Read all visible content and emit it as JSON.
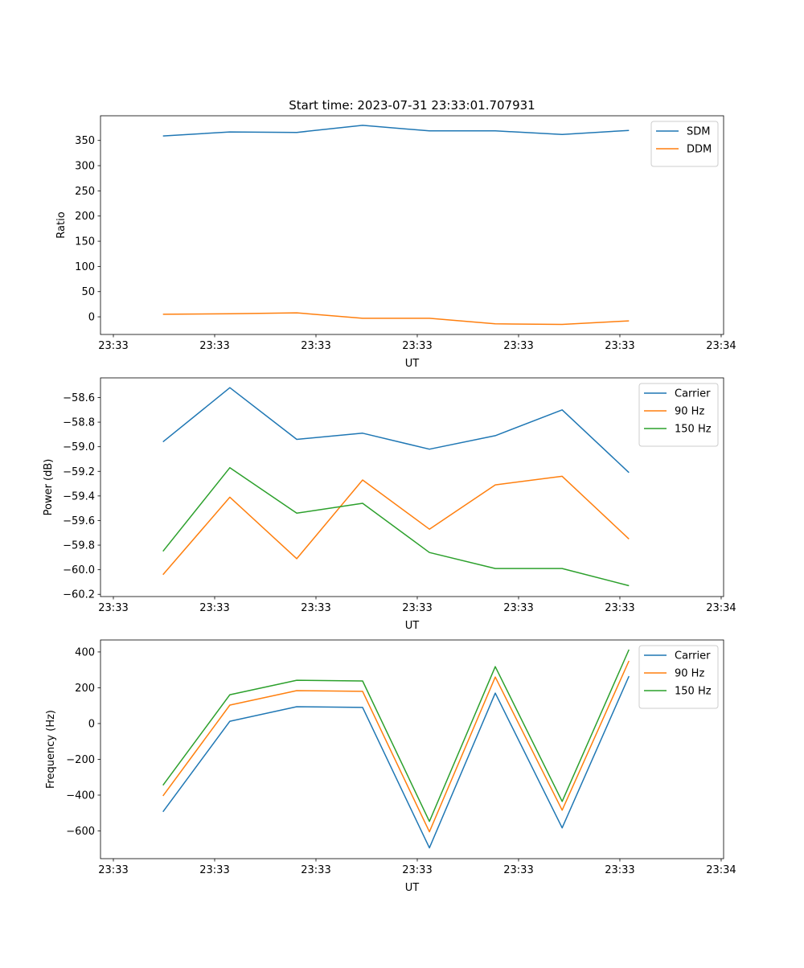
{
  "chart_data": [
    {
      "type": "line",
      "title": "Start time: 2023-07-31 23:33:01.707931",
      "xlabel": "UT",
      "ylabel": "Ratio",
      "x_unit": "seconds after 23:33:00",
      "x": [
        4.9,
        11.5,
        18.1,
        24.6,
        31.2,
        37.7,
        44.3,
        50.9
      ],
      "xlim": [
        -1.27,
        60.24
      ],
      "xticks": [
        0,
        10,
        20,
        30,
        40,
        50,
        60
      ],
      "xtick_labels": [
        "23:33",
        "23:33",
        "23:33",
        "23:33",
        "23:33",
        "23:33",
        "23:34"
      ],
      "ylim": [
        -35,
        399
      ],
      "yticks": [
        0,
        50,
        100,
        150,
        200,
        250,
        300,
        350
      ],
      "ytick_labels": [
        "0",
        "50",
        "100",
        "150",
        "200",
        "250",
        "300",
        "350"
      ],
      "legend": "upper-right",
      "series": [
        {
          "name": "SDM",
          "color": "#1f77b4",
          "values": [
            359,
            367,
            366,
            380,
            369,
            369,
            362,
            370
          ]
        },
        {
          "name": "DDM",
          "color": "#ff7f0e",
          "values": [
            5,
            6,
            8,
            -3,
            -3,
            -14,
            -15,
            -8
          ]
        }
      ]
    },
    {
      "type": "line",
      "title": "",
      "xlabel": "UT",
      "ylabel": "Power (dB)",
      "x_unit": "seconds after 23:33:00",
      "x": [
        4.9,
        11.5,
        18.1,
        24.6,
        31.2,
        37.7,
        44.3,
        50.9
      ],
      "xlim": [
        -1.27,
        60.24
      ],
      "xticks": [
        0,
        10,
        20,
        30,
        40,
        50,
        60
      ],
      "xtick_labels": [
        "23:33",
        "23:33",
        "23:33",
        "23:33",
        "23:33",
        "23:33",
        "23:34"
      ],
      "ylim": [
        -60.218,
        -58.44
      ],
      "yticks": [
        -60.2,
        -60.0,
        -59.8,
        -59.6,
        -59.4,
        -59.2,
        -59.0,
        -58.8,
        -58.6
      ],
      "ytick_labels": [
        "−60.2",
        "−60.0",
        "−59.8",
        "−59.6",
        "−59.4",
        "−59.2",
        "−59.0",
        "−58.8",
        "−58.6"
      ],
      "legend": "upper-right",
      "series": [
        {
          "name": "Carrier",
          "color": "#1f77b4",
          "values": [
            -58.96,
            -58.52,
            -58.94,
            -58.89,
            -59.02,
            -58.91,
            -58.7,
            -59.21
          ]
        },
        {
          "name": "90 Hz",
          "color": "#ff7f0e",
          "values": [
            -60.04,
            -59.41,
            -59.91,
            -59.27,
            -59.67,
            -59.31,
            -59.24,
            -59.75
          ]
        },
        {
          "name": "150 Hz",
          "color": "#2ca02c",
          "values": [
            -59.85,
            -59.17,
            -59.54,
            -59.46,
            -59.86,
            -59.99,
            -59.99,
            -60.13
          ]
        }
      ]
    },
    {
      "type": "line",
      "title": "",
      "xlabel": "UT",
      "ylabel": "Frequency (Hz)",
      "x_unit": "seconds after 23:33:00",
      "x": [
        4.9,
        11.5,
        18.1,
        24.6,
        31.2,
        37.7,
        44.3,
        50.9
      ],
      "xlim": [
        -1.27,
        60.24
      ],
      "xticks": [
        0,
        10,
        20,
        30,
        40,
        50,
        60
      ],
      "xtick_labels": [
        "23:33",
        "23:33",
        "23:33",
        "23:33",
        "23:33",
        "23:33",
        "23:34"
      ],
      "ylim": [
        -755,
        467
      ],
      "yticks": [
        -600,
        -400,
        -200,
        0,
        200,
        400
      ],
      "ytick_labels": [
        "−600",
        "−400",
        "−200",
        "0",
        "200",
        "400"
      ],
      "legend": "upper-right",
      "series": [
        {
          "name": "Carrier",
          "color": "#1f77b4",
          "values": [
            -493,
            13,
            94,
            90,
            -695,
            170,
            -583,
            265
          ]
        },
        {
          "name": "90 Hz",
          "color": "#ff7f0e",
          "values": [
            -404,
            103,
            184,
            180,
            -605,
            260,
            -484,
            350
          ]
        },
        {
          "name": "150 Hz",
          "color": "#2ca02c",
          "values": [
            -345,
            161,
            242,
            238,
            -547,
            318,
            -435,
            413
          ]
        }
      ]
    }
  ]
}
